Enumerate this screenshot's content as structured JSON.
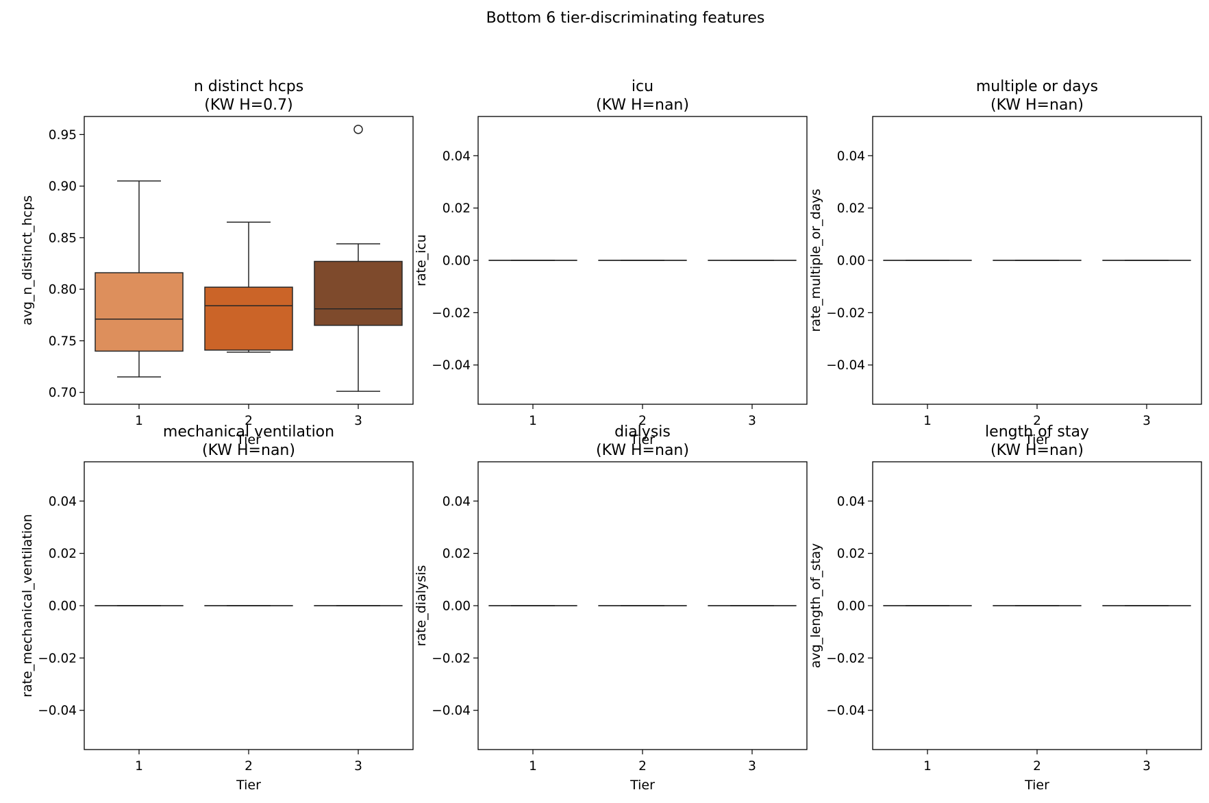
{
  "figure_title": "Bottom 6 tier-discriminating features",
  "colors": {
    "tier_1": "#dd8f5c",
    "tier_2": "#cb6428",
    "tier_3": "#7e4a2c",
    "line": "#262626",
    "axis": "#000000"
  },
  "chart_data": [
    {
      "type": "box",
      "title": "n distinct hcps",
      "subtitle": "(KW H=0.7)",
      "xlabel": "Tier",
      "ylabel": "avg_n_distinct_hcps",
      "categories": [
        "1",
        "2",
        "3"
      ],
      "ylim": [
        0.6885,
        0.9675
      ],
      "yticks": [
        0.7,
        0.75,
        0.8,
        0.85,
        0.9,
        0.95
      ],
      "ytick_labels": [
        "0.70",
        "0.75",
        "0.80",
        "0.85",
        "0.90",
        "0.95"
      ],
      "boxes": [
        {
          "tier": "1",
          "whisker_low": 0.715,
          "q1": 0.74,
          "median": 0.771,
          "q3": 0.816,
          "whisker_high": 0.905,
          "outliers": []
        },
        {
          "tier": "2",
          "whisker_low": 0.739,
          "q1": 0.741,
          "median": 0.784,
          "q3": 0.802,
          "whisker_high": 0.865,
          "outliers": []
        },
        {
          "tier": "3",
          "whisker_low": 0.701,
          "q1": 0.765,
          "median": 0.781,
          "q3": 0.827,
          "whisker_high": 0.844,
          "outliers": [
            0.955
          ]
        }
      ]
    },
    {
      "type": "box",
      "title": "icu",
      "subtitle": "(KW H=nan)",
      "xlabel": "Tier",
      "ylabel": "rate_icu",
      "categories": [
        "1",
        "2",
        "3"
      ],
      "ylim": [
        -0.055,
        0.055
      ],
      "yticks": [
        -0.04,
        -0.02,
        0.0,
        0.02,
        0.04
      ],
      "ytick_labels": [
        "−0.04",
        "−0.02",
        "0.00",
        "0.02",
        "0.04"
      ],
      "boxes": [
        {
          "tier": "1",
          "whisker_low": 0,
          "q1": 0,
          "median": 0,
          "q3": 0,
          "whisker_high": 0,
          "outliers": []
        },
        {
          "tier": "2",
          "whisker_low": 0,
          "q1": 0,
          "median": 0,
          "q3": 0,
          "whisker_high": 0,
          "outliers": []
        },
        {
          "tier": "3",
          "whisker_low": 0,
          "q1": 0,
          "median": 0,
          "q3": 0,
          "whisker_high": 0,
          "outliers": []
        }
      ]
    },
    {
      "type": "box",
      "title": "multiple or days",
      "subtitle": "(KW H=nan)",
      "xlabel": "Tier",
      "ylabel": "rate_multiple_or_days",
      "categories": [
        "1",
        "2",
        "3"
      ],
      "ylim": [
        -0.055,
        0.055
      ],
      "yticks": [
        -0.04,
        -0.02,
        0.0,
        0.02,
        0.04
      ],
      "ytick_labels": [
        "−0.04",
        "−0.02",
        "0.00",
        "0.02",
        "0.04"
      ],
      "boxes": [
        {
          "tier": "1",
          "whisker_low": 0,
          "q1": 0,
          "median": 0,
          "q3": 0,
          "whisker_high": 0,
          "outliers": []
        },
        {
          "tier": "2",
          "whisker_low": 0,
          "q1": 0,
          "median": 0,
          "q3": 0,
          "whisker_high": 0,
          "outliers": []
        },
        {
          "tier": "3",
          "whisker_low": 0,
          "q1": 0,
          "median": 0,
          "q3": 0,
          "whisker_high": 0,
          "outliers": []
        }
      ]
    },
    {
      "type": "box",
      "title": "mechanical ventilation",
      "subtitle": "(KW H=nan)",
      "xlabel": "Tier",
      "ylabel": "rate_mechanical_ventilation",
      "categories": [
        "1",
        "2",
        "3"
      ],
      "ylim": [
        -0.055,
        0.055
      ],
      "yticks": [
        -0.04,
        -0.02,
        0.0,
        0.02,
        0.04
      ],
      "ytick_labels": [
        "−0.04",
        "−0.02",
        "0.00",
        "0.02",
        "0.04"
      ],
      "boxes": [
        {
          "tier": "1",
          "whisker_low": 0,
          "q1": 0,
          "median": 0,
          "q3": 0,
          "whisker_high": 0,
          "outliers": []
        },
        {
          "tier": "2",
          "whisker_low": 0,
          "q1": 0,
          "median": 0,
          "q3": 0,
          "whisker_high": 0,
          "outliers": []
        },
        {
          "tier": "3",
          "whisker_low": 0,
          "q1": 0,
          "median": 0,
          "q3": 0,
          "whisker_high": 0,
          "outliers": []
        }
      ]
    },
    {
      "type": "box",
      "title": "dialysis",
      "subtitle": "(KW H=nan)",
      "xlabel": "Tier",
      "ylabel": "rate_dialysis",
      "categories": [
        "1",
        "2",
        "3"
      ],
      "ylim": [
        -0.055,
        0.055
      ],
      "yticks": [
        -0.04,
        -0.02,
        0.0,
        0.02,
        0.04
      ],
      "ytick_labels": [
        "−0.04",
        "−0.02",
        "0.00",
        "0.02",
        "0.04"
      ],
      "boxes": [
        {
          "tier": "1",
          "whisker_low": 0,
          "q1": 0,
          "median": 0,
          "q3": 0,
          "whisker_high": 0,
          "outliers": []
        },
        {
          "tier": "2",
          "whisker_low": 0,
          "q1": 0,
          "median": 0,
          "q3": 0,
          "whisker_high": 0,
          "outliers": []
        },
        {
          "tier": "3",
          "whisker_low": 0,
          "q1": 0,
          "median": 0,
          "q3": 0,
          "whisker_high": 0,
          "outliers": []
        }
      ]
    },
    {
      "type": "box",
      "title": "length of stay",
      "subtitle": "(KW H=nan)",
      "xlabel": "Tier",
      "ylabel": "avg_length_of_stay",
      "categories": [
        "1",
        "2",
        "3"
      ],
      "ylim": [
        -0.055,
        0.055
      ],
      "yticks": [
        -0.04,
        -0.02,
        0.0,
        0.02,
        0.04
      ],
      "ytick_labels": [
        "−0.04",
        "−0.02",
        "0.00",
        "0.02",
        "0.04"
      ],
      "boxes": [
        {
          "tier": "1",
          "whisker_low": 0,
          "q1": 0,
          "median": 0,
          "q3": 0,
          "whisker_high": 0,
          "outliers": []
        },
        {
          "tier": "2",
          "whisker_low": 0,
          "q1": 0,
          "median": 0,
          "q3": 0,
          "whisker_high": 0,
          "outliers": []
        },
        {
          "tier": "3",
          "whisker_low": 0,
          "q1": 0,
          "median": 0,
          "q3": 0,
          "whisker_high": 0,
          "outliers": []
        }
      ]
    }
  ]
}
